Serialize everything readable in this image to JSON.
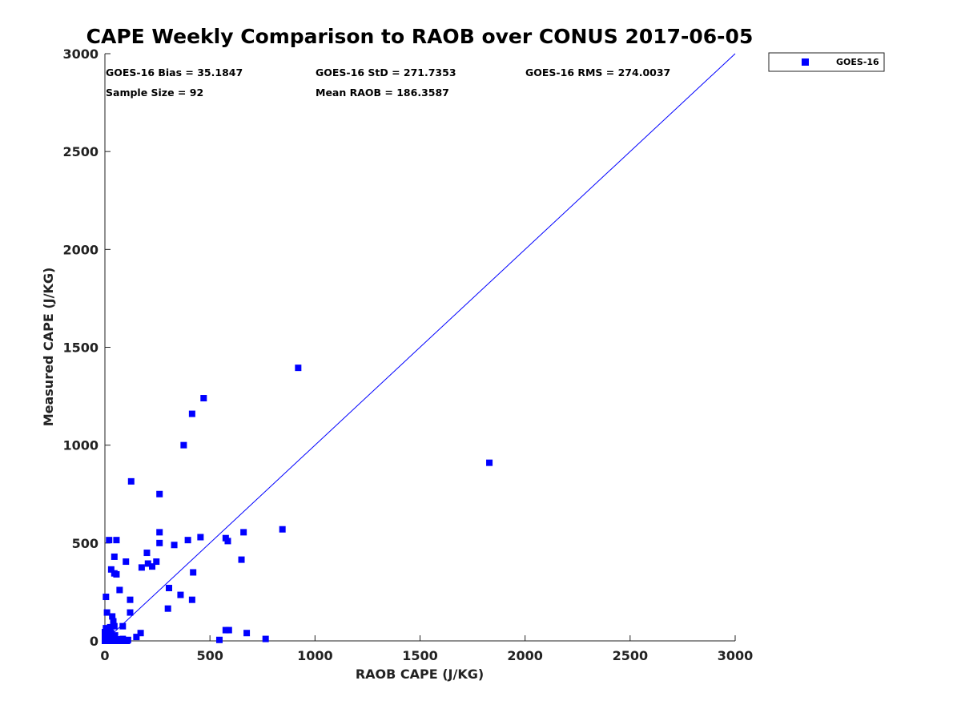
{
  "chart_data": {
    "type": "scatter",
    "title": "CAPE Weekly Comparison to RAOB over CONUS 2017-06-05",
    "xlabel": "RAOB CAPE (J/KG)",
    "ylabel": "Measured CAPE (J/KG)",
    "xlim": [
      0,
      3000
    ],
    "ylim": [
      0,
      3000
    ],
    "xticks": [
      0,
      500,
      1000,
      1500,
      2000,
      2500,
      3000
    ],
    "yticks": [
      0,
      500,
      1000,
      1500,
      2000,
      2500,
      3000
    ],
    "grid": false,
    "legend_position": "outside-top-right",
    "legend": [
      "GOES-16"
    ],
    "reference_line": {
      "name": "one-to-one",
      "x": [
        0,
        3000
      ],
      "y": [
        0,
        3000
      ]
    },
    "stats": {
      "bias": "GOES-16 Bias = 35.1847",
      "std": "GOES-16 StD = 271.7353",
      "rms": "GOES-16 RMS = 274.0037",
      "sample_size": "Sample Size = 92",
      "mean_raob": "Mean RAOB = 186.3587"
    },
    "series": [
      {
        "name": "GOES-16",
        "color": "#0000ff",
        "marker": "square",
        "points": [
          [
            920,
            1395
          ],
          [
            470,
            1240
          ],
          [
            415,
            1160
          ],
          [
            375,
            1000
          ],
          [
            125,
            815
          ],
          [
            1830,
            910
          ],
          [
            260,
            750
          ],
          [
            845,
            570
          ],
          [
            660,
            555
          ],
          [
            575,
            525
          ],
          [
            585,
            510
          ],
          [
            455,
            530
          ],
          [
            260,
            555
          ],
          [
            395,
            515
          ],
          [
            330,
            490
          ],
          [
            260,
            500
          ],
          [
            20,
            515
          ],
          [
            55,
            515
          ],
          [
            200,
            450
          ],
          [
            45,
            430
          ],
          [
            650,
            415
          ],
          [
            100,
            405
          ],
          [
            245,
            405
          ],
          [
            205,
            395
          ],
          [
            225,
            380
          ],
          [
            175,
            375
          ],
          [
            30,
            365
          ],
          [
            45,
            345
          ],
          [
            55,
            340
          ],
          [
            420,
            350
          ],
          [
            70,
            260
          ],
          [
            305,
            270
          ],
          [
            360,
            235
          ],
          [
            120,
            210
          ],
          [
            415,
            210
          ],
          [
            5,
            225
          ],
          [
            300,
            165
          ],
          [
            120,
            145
          ],
          [
            10,
            145
          ],
          [
            35,
            125
          ],
          [
            40,
            100
          ],
          [
            45,
            75
          ],
          [
            85,
            75
          ],
          [
            25,
            70
          ],
          [
            5,
            65
          ],
          [
            15,
            50
          ],
          [
            30,
            40
          ],
          [
            20,
            30
          ],
          [
            170,
            40
          ],
          [
            150,
            20
          ],
          [
            575,
            55
          ],
          [
            590,
            55
          ],
          [
            675,
            40
          ],
          [
            765,
            10
          ],
          [
            545,
            5
          ],
          [
            0,
            0
          ],
          [
            5,
            5
          ],
          [
            10,
            0
          ],
          [
            15,
            10
          ],
          [
            20,
            5
          ],
          [
            25,
            0
          ],
          [
            30,
            15
          ],
          [
            35,
            5
          ],
          [
            40,
            0
          ],
          [
            45,
            10
          ],
          [
            50,
            0
          ],
          [
            55,
            5
          ],
          [
            60,
            0
          ],
          [
            70,
            0
          ],
          [
            80,
            5
          ],
          [
            90,
            0
          ],
          [
            100,
            0
          ],
          [
            5,
            20
          ],
          [
            10,
            25
          ],
          [
            2,
            35
          ],
          [
            8,
            12
          ],
          [
            12,
            40
          ],
          [
            28,
            22
          ],
          [
            18,
            55
          ],
          [
            3,
            10
          ],
          [
            38,
            20
          ],
          [
            48,
            28
          ],
          [
            65,
            8
          ],
          [
            75,
            2
          ],
          [
            85,
            10
          ],
          [
            95,
            3
          ],
          [
            105,
            0
          ],
          [
            110,
            5
          ],
          [
            0,
            15
          ],
          [
            0,
            45
          ],
          [
            14,
            3
          ],
          [
            22,
            12
          ]
        ]
      }
    ]
  }
}
